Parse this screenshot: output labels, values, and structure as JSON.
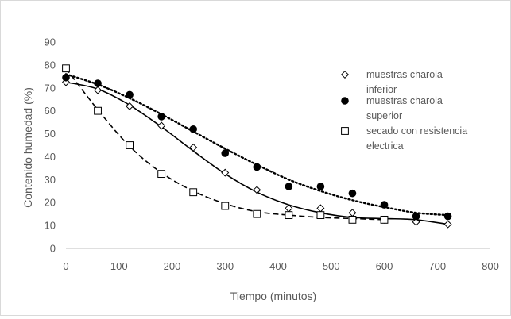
{
  "chart_data": {
    "type": "scatter",
    "title": "",
    "xlabel": "Tiempo (minutos)",
    "ylabel": "Contenido humedad (%)",
    "xlim": [
      0,
      800
    ],
    "ylim": [
      0,
      90
    ],
    "x_ticks": [
      "0",
      "100",
      "200",
      "300",
      "400",
      "500",
      "600",
      "700",
      "800"
    ],
    "y_ticks": [
      "0",
      "10",
      "20",
      "30",
      "40",
      "50",
      "60",
      "70",
      "80",
      "90"
    ],
    "grid": false,
    "legend_position": "right",
    "series": [
      {
        "name": "muestras charola inferior",
        "marker": "diamond-open",
        "trend": "solid",
        "x": [
          0,
          60,
          120,
          180,
          240,
          300,
          360,
          420,
          480,
          540,
          600,
          660,
          720
        ],
        "y": [
          72.5,
          69,
          62,
          53.5,
          44,
          33,
          25.5,
          17.5,
          17.5,
          15.5,
          12.5,
          11.5,
          10.5
        ],
        "trend_y": [
          72.5,
          69.5,
          62.5,
          53,
          42.5,
          32.5,
          24.5,
          19,
          15.5,
          13.5,
          13,
          12.5,
          10.5
        ]
      },
      {
        "name": "muestras charola superior",
        "marker": "circle-filled",
        "trend": "dotted",
        "x": [
          0,
          60,
          120,
          180,
          240,
          300,
          360,
          420,
          480,
          540,
          600,
          660,
          720
        ],
        "y": [
          74.5,
          72,
          67,
          57.5,
          52,
          41.5,
          35.5,
          27,
          27,
          24,
          19,
          14,
          14
        ],
        "trend_y": [
          76,
          71.5,
          65.5,
          58.5,
          51,
          43.5,
          36.5,
          30,
          25,
          21,
          18,
          15.5,
          14.5
        ]
      },
      {
        "name": "secado con resistencia electrica",
        "marker": "square-open",
        "trend": "dashed",
        "x": [
          0,
          60,
          120,
          180,
          240,
          300,
          360,
          420,
          480,
          540,
          600
        ],
        "y": [
          78.5,
          60,
          45,
          32.5,
          24.5,
          18.5,
          15,
          14.5,
          14.5,
          12.5,
          12.5
        ],
        "trend_y": [
          78.5,
          60.5,
          44.5,
          33,
          25,
          19.5,
          16,
          14.5,
          13.5,
          13,
          12.5
        ]
      }
    ],
    "legend": [
      {
        "lines": [
          "muestras charola",
          "inferior"
        ]
      },
      {
        "lines": [
          "muestras charola",
          "superior"
        ]
      },
      {
        "lines": [
          "secado con resistencia",
          "electrica"
        ]
      }
    ]
  }
}
